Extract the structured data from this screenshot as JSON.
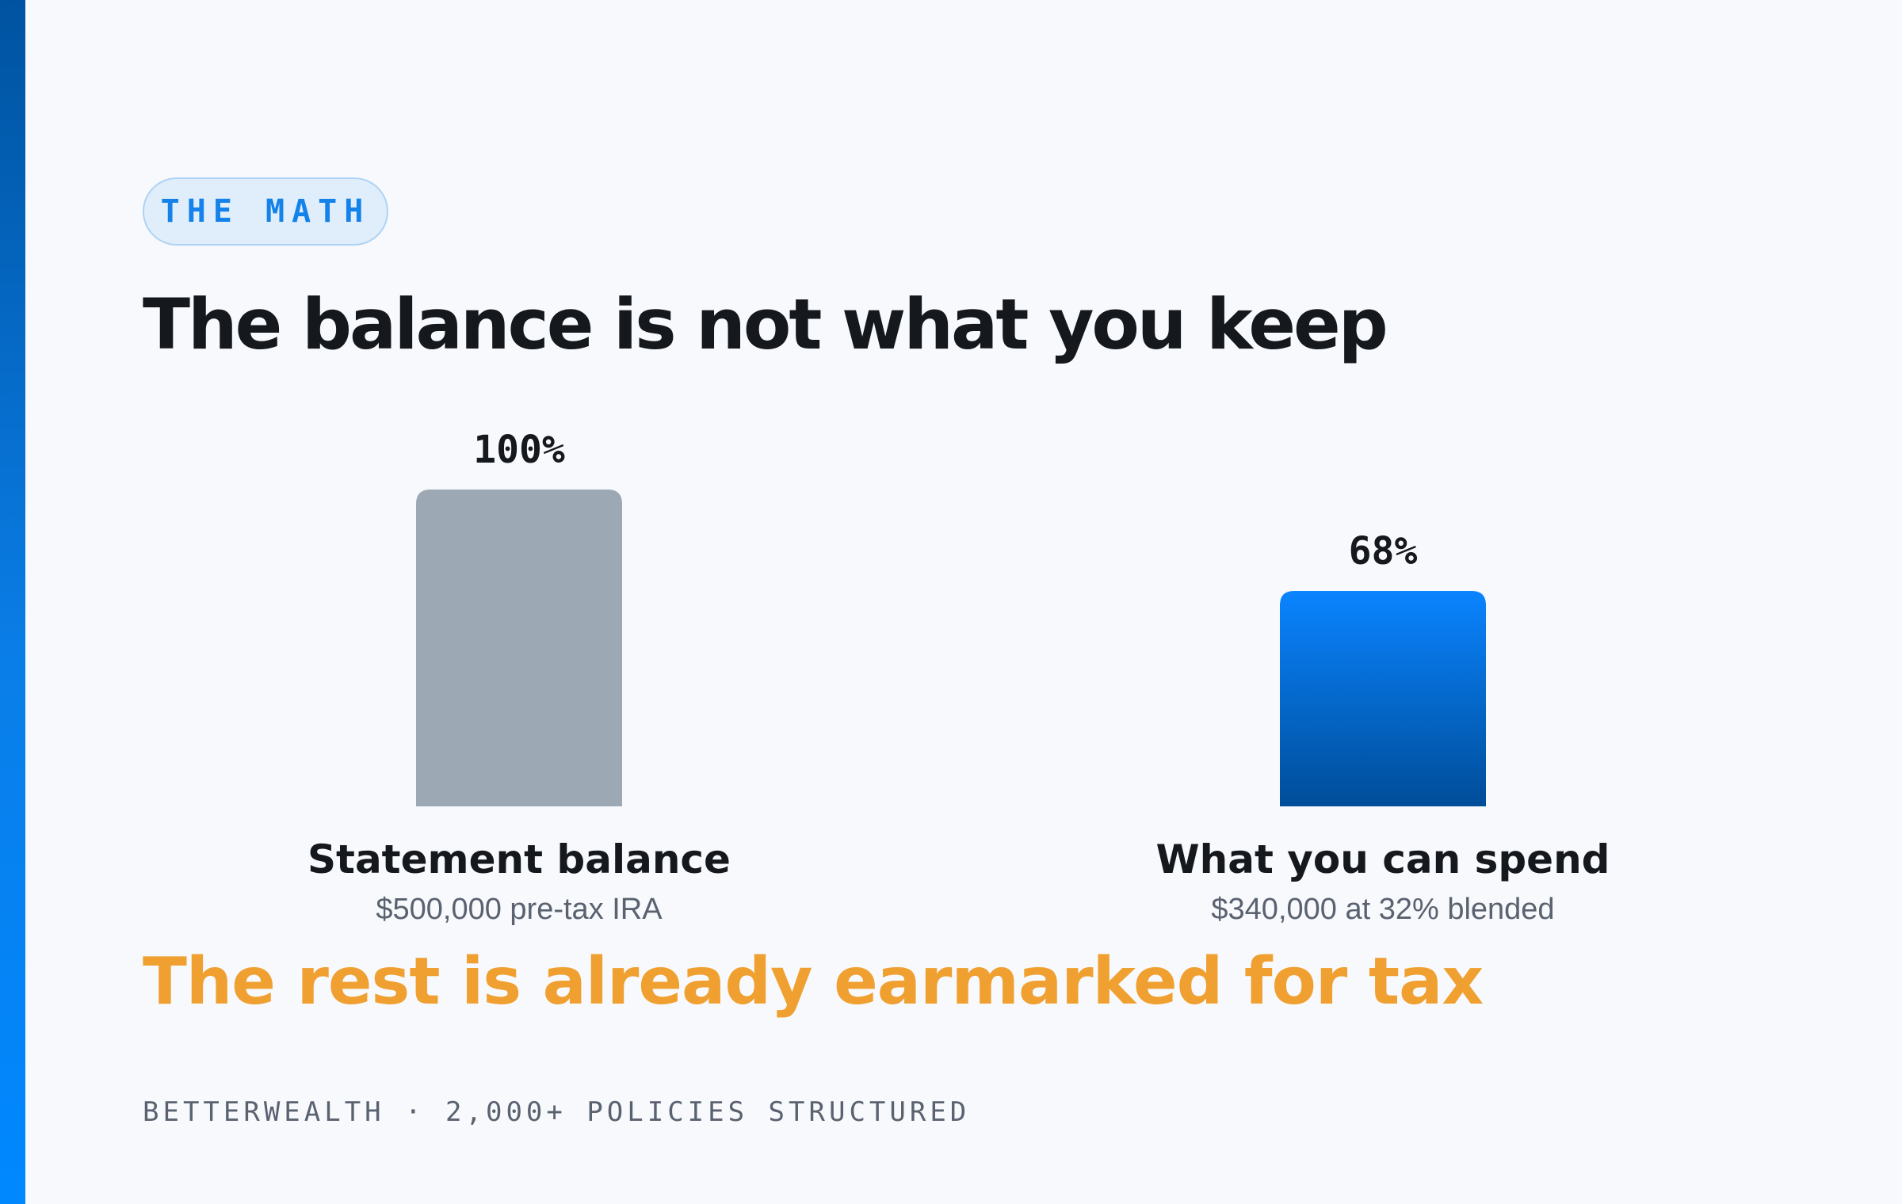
{
  "eyebrow": "THE MATH",
  "title": "The balance is not what you keep",
  "tagline": "The rest is already earmarked for tax",
  "footer": "BETTERWEALTH · 2,000+ POLICIES STRUCTURED",
  "colors": {
    "accent": "#0a7ee8",
    "gray_bar": "#9ca9b5",
    "blue_bar_top": "#0a84ff",
    "blue_bar_bottom": "#004d99",
    "tagline": "#f0a030",
    "text": "#15181d",
    "muted": "#5a6270"
  },
  "chart_data": {
    "type": "bar",
    "categories": [
      "Statement balance",
      "What you can spend"
    ],
    "subtitles": [
      "$500,000 pre-tax IRA",
      "$340,000 at 32% blended"
    ],
    "values": [
      100,
      68
    ],
    "value_labels": [
      "100%",
      "68%"
    ],
    "unit": "%",
    "ylim": [
      0,
      100
    ],
    "grid": false,
    "legend": "none",
    "bar_colors": [
      "gray",
      "blue-gradient"
    ]
  }
}
